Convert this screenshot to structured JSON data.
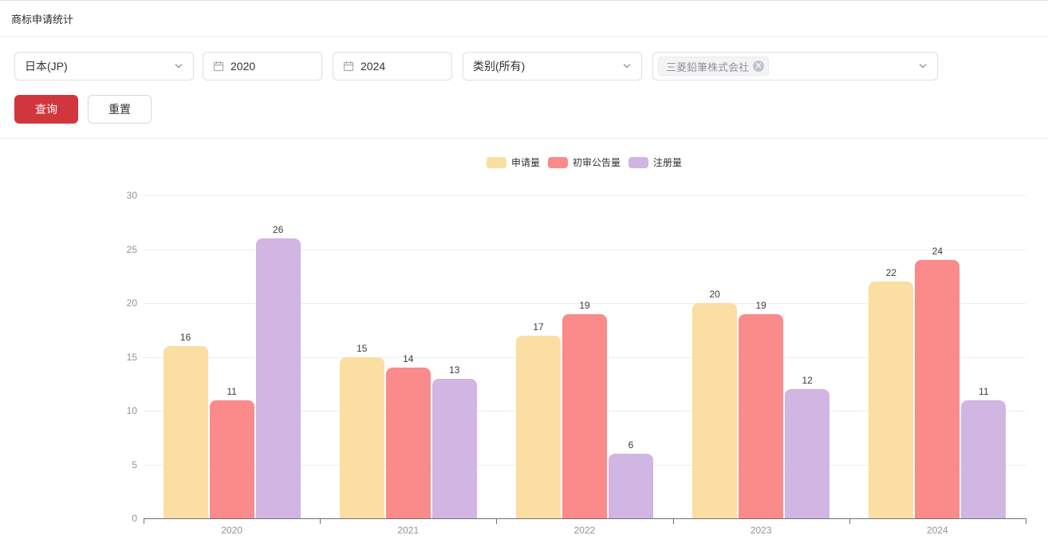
{
  "page": {
    "title": "商标申请统计"
  },
  "theme": {
    "primary_button_color": "#d2363d",
    "axis_line_color": "#6e7079",
    "gridline_color": "#e9edf3",
    "tick_label_color": "#909399"
  },
  "filters": {
    "country_select": {
      "value": "日本(JP)",
      "icon": "chevron-down-icon"
    },
    "start_year": {
      "value": "2020",
      "icon": "calendar-icon"
    },
    "end_year": {
      "value": "2024",
      "icon": "calendar-icon"
    },
    "category_select": {
      "value": "类别(所有)",
      "icon": "chevron-down-icon"
    },
    "applicant_select": {
      "tag": "三菱鉛筆株式会社",
      "tag_close_icon": "close-icon",
      "icon": "chevron-down-icon"
    }
  },
  "actions": {
    "query_label": "查询",
    "reset_label": "重置"
  },
  "chart_data": {
    "type": "bar",
    "title": "",
    "categories": [
      "2020",
      "2021",
      "2022",
      "2023",
      "2024"
    ],
    "series": [
      {
        "name": "申请量",
        "color": "#fadea2",
        "values": [
          16,
          15,
          17,
          20,
          22
        ]
      },
      {
        "name": "初审公告量",
        "color": "#fb8a8b",
        "values": [
          11,
          14,
          19,
          19,
          24
        ]
      },
      {
        "name": "注册量",
        "color": "#d1b5e2",
        "values": [
          26,
          13,
          6,
          12,
          11
        ]
      }
    ],
    "xlabel": "",
    "ylabel": "",
    "ylim": [
      0,
      30
    ],
    "y_ticks": [
      0,
      5,
      10,
      15,
      20,
      25,
      30
    ],
    "grid": true,
    "legend_position": "top-center",
    "value_labels": true
  }
}
